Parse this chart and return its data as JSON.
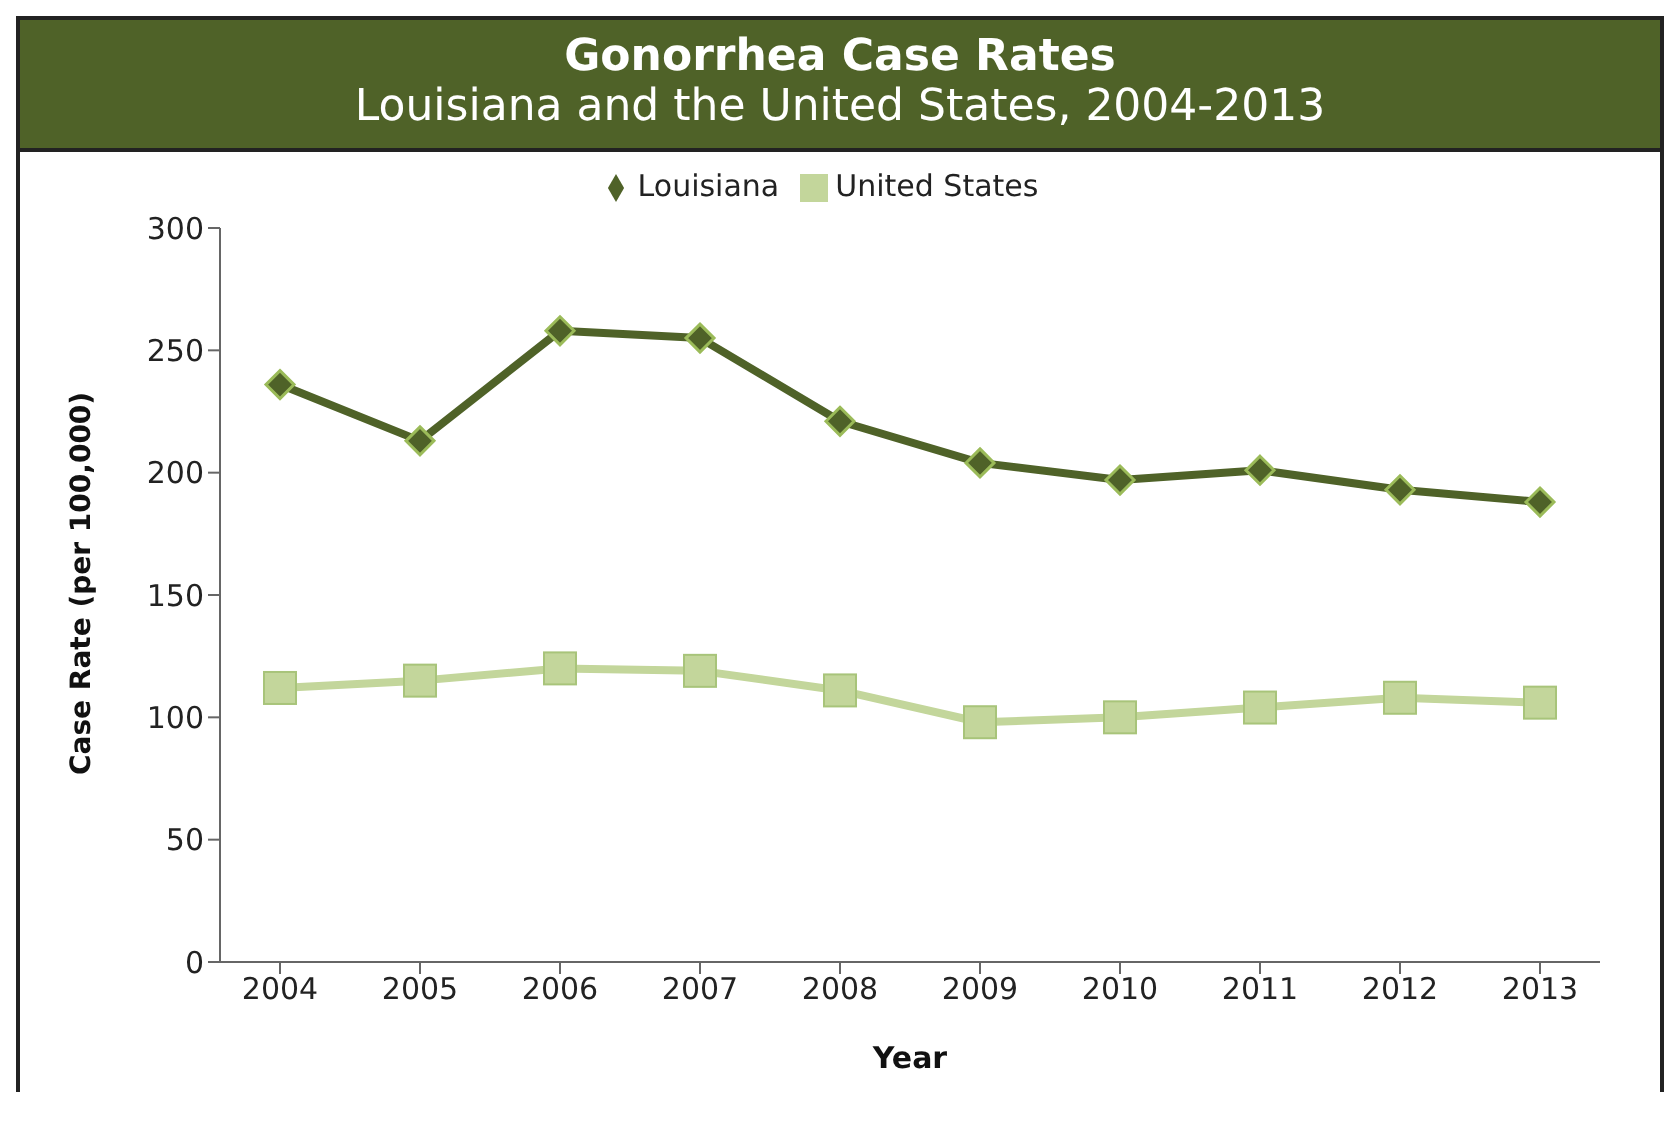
{
  "chart_data": {
    "type": "line",
    "title": "Gonorrhea Case Rates",
    "subtitle": "Louisiana and the United States, 2004-2013",
    "xlabel": "Year",
    "ylabel": "Case Rate (per 100,000)",
    "categories": [
      "2004",
      "2005",
      "2006",
      "2007",
      "2008",
      "2009",
      "2010",
      "2011",
      "2012",
      "2013"
    ],
    "series": [
      {
        "name": "Louisiana",
        "color": "#4f6228",
        "marker": "diamond",
        "values": [
          236,
          213,
          258,
          255,
          221,
          204,
          197,
          201,
          193,
          188
        ]
      },
      {
        "name": "United States",
        "color": "#c3d69b",
        "marker": "square",
        "values": [
          112,
          115,
          120,
          119,
          111,
          98,
          100,
          104,
          108,
          106
        ]
      }
    ],
    "ylim": [
      0,
      300
    ],
    "yticks": [
      0,
      50,
      100,
      150,
      200,
      250,
      300
    ],
    "grid": false,
    "legend": "top",
    "line_style": "solid"
  }
}
